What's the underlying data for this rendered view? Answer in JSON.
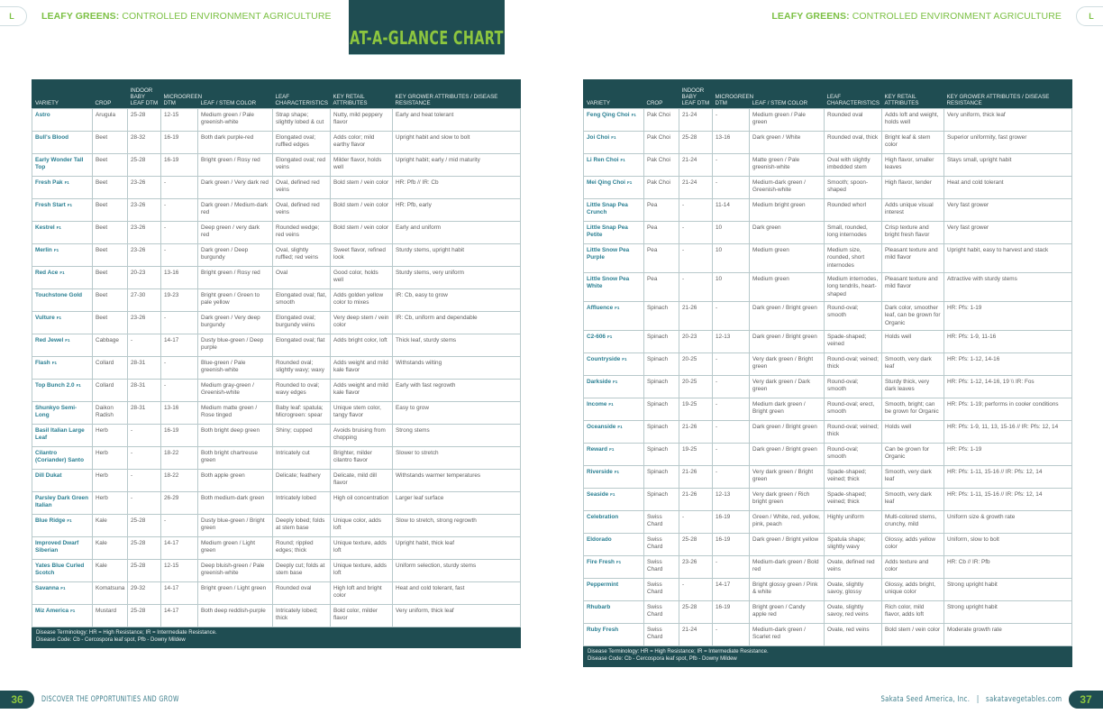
{
  "header": {
    "section_tab": "L",
    "running_bold": "LEAFY GREENS:",
    "running_rest": " CONTROLLED ENVIRONMENT AGRICULTURE",
    "title": "AT-A-GLANCE CHART"
  },
  "columns": [
    "VARIETY",
    "CROP",
    "INDOOR BABY LEAF DTM",
    "MICROGREEN DTM",
    "LEAF / STEM COLOR",
    "LEAF CHARACTERISTICS",
    "KEY RETAIL ATTRIBUTES",
    "KEY GROWER ATTRIBUTES / DISEASE RESISTANCE"
  ],
  "hybrid_label": "F1",
  "left_rows": [
    [
      "Astro",
      false,
      "Arugula",
      "25-28",
      "12-15",
      "Medium green / Pale greenish-white",
      "Strap shape; slightly lobed & cut",
      "Nutty, mild peppery flavor",
      "Early and heat tolerant"
    ],
    [
      "Bull's Blood",
      false,
      "Beet",
      "28-32",
      "16-19",
      "Both dark purple-red",
      "Elongated oval; ruffled edges",
      "Adds color; mild earthy flavor",
      "Upright habit and slow to bolt"
    ],
    [
      "Early Wonder Tall Top",
      false,
      "Beet",
      "25-28",
      "16-19",
      "Bright green / Rosy red",
      "Elongated oval; red veins",
      "Milder flavor, holds well",
      "Upright habit; early / mid maturity"
    ],
    [
      "Fresh Pak",
      true,
      "Beet",
      "23-26",
      "-",
      "Dark green / Very dark red",
      "Oval, defined red veins",
      "Bold stem / vein color",
      "HR: Pfb // IR: Cb"
    ],
    [
      "Fresh Start",
      true,
      "Beet",
      "23-26",
      "-",
      "Dark green / Medium-dark red",
      "Oval, defined red veins",
      "Bold stem / vein color",
      "HR: Pfb, early"
    ],
    [
      "Kestrel",
      true,
      "Beet",
      "23-26",
      "-",
      "Deep green / very dark red",
      "Rounded wedge; red veins",
      "Bold stem / vein color",
      "Early and uniform"
    ],
    [
      "Merlin",
      true,
      "Beet",
      "23-26",
      "-",
      "Dark green / Deep burgundy",
      "Oval, slightly ruffled; red veins",
      "Sweet flavor, refined look",
      "Sturdy stems, upright habit"
    ],
    [
      "Red Ace",
      true,
      "Beet",
      "20-23",
      "13-16",
      "Bright green / Rosy red",
      "Oval",
      "Good color, holds well",
      "Sturdy stems, very uniform"
    ],
    [
      "Touchstone Gold",
      false,
      "Beet",
      "27-30",
      "19-23",
      "Bright green / Green to pale yellow",
      "Elongated oval; flat, smooth",
      "Adds golden yellow color to mixes",
      "IR: Cb, easy to grow"
    ],
    [
      "Vulture",
      true,
      "Beet",
      "23-26",
      "-",
      "Dark green / Very deep burgundy",
      "Elongated oval; burgundy veins",
      "Very deep stem / vein color",
      "IR: Cb, uniform and dependable"
    ],
    [
      "Red Jewel",
      true,
      "Cabbage",
      "-",
      "14-17",
      "Dusty blue-green / Deep purple",
      "Elongated oval; flat",
      "Adds bright color, loft",
      "Thick leaf, sturdy stems"
    ],
    [
      "Flash",
      true,
      "Collard",
      "28-31",
      "-",
      "Blue-green / Pale greenish-white",
      "Rounded oval; slightly wavy; waxy",
      "Adds weight and mild kale flavor",
      "Withstands wilting"
    ],
    [
      "Top Bunch 2.0",
      true,
      "Collard",
      "28-31",
      "-",
      "Medium gray-green / Greenish-white",
      "Rounded to oval; wavy edges",
      "Adds weight and mild kale flavor",
      "Early with fast regrowth"
    ],
    [
      "Shunkyo Semi-Long",
      false,
      "Daikon Radish",
      "28-31",
      "13-16",
      "Medium matte green / Rose tinged",
      "Baby leaf: spatula; Microgreen: spear",
      "Unique stem color, tangy flavor",
      "Easy to grow"
    ],
    [
      "Basil Italian Large Leaf",
      false,
      "Herb",
      "-",
      "16-19",
      "Both bright deep green",
      "Shiny; cupped",
      "Avoids bruising from chopping",
      "Strong stems"
    ],
    [
      "Cilantro (Coriander) Santo",
      false,
      "Herb",
      "-",
      "18-22",
      "Both bright chartreuse green",
      "Intricately cut",
      "Brighter, milder cilantro flavor",
      "Slower to stretch"
    ],
    [
      "Dill Dukat",
      false,
      "Herb",
      "-",
      "18-22",
      "Both apple green",
      "Delicate; feathery",
      "Delicate, mild dill flavor",
      "Withstands warmer temperatures"
    ],
    [
      "Parsley Dark Green Italian",
      false,
      "Herb",
      "-",
      "26-29",
      "Both medium-dark green",
      "Intricately lobed",
      "High oil concentration",
      "Larger leaf surface"
    ],
    [
      "Blue Ridge",
      true,
      "Kale",
      "25-28",
      "-",
      "Dusty blue-green / Bright green",
      "Deeply lobed; folds at stem base",
      "Unique color, adds loft",
      "Slow to stretch, strong regrowth"
    ],
    [
      "Improved Dwarf Siberian",
      false,
      "Kale",
      "25-28",
      "14-17",
      "Medium green / Light green",
      "Round; rippled edges; thick",
      "Unique texture, adds loft",
      "Upright habit, thick leaf"
    ],
    [
      "Yates Blue Curled Scotch",
      false,
      "Kale",
      "25-28",
      "12-15",
      "Deep bluish-green / Pale greenish-white",
      "Deeply cut; folds at stem base",
      "Unique texture, adds loft",
      "Uniform selection, sturdy stems"
    ],
    [
      "Savanna",
      true,
      "Komatsuna",
      "29-32",
      "14-17",
      "Bright green / Light green",
      "Rounded oval",
      "High loft and bright color",
      "Heat and cold tolerant, fast"
    ],
    [
      "Miz America",
      true,
      "Mustard",
      "25-28",
      "14-17",
      "Both deep reddish-purple",
      "Intricately lobed; thick",
      "Bold color, milder flavor",
      "Very uniform, thick leaf"
    ]
  ],
  "right_rows": [
    [
      "Feng Qing Choi",
      true,
      "Pak Choi",
      "21-24",
      "-",
      "Medium green / Pale green",
      "Rounded oval",
      "Adds loft and weight, holds well",
      "Very uniform, thick leaf"
    ],
    [
      "Joi Choi",
      true,
      "Pak Choi",
      "25-28",
      "13-16",
      "Dark green / White",
      "Rounded oval, thick",
      "Bright leaf & stem color",
      "Superior uniformity, fast grower"
    ],
    [
      "Li Ren Choi",
      true,
      "Pak Choi",
      "21-24",
      "-",
      "Matte green / Pale greenish-white",
      "Oval with slightly imbedded stem",
      "High flavor, smaller leaves",
      "Stays small, upright habit"
    ],
    [
      "Mei Qing Choi",
      true,
      "Pak Choi",
      "21-24",
      "-",
      "Medium-dark green / Greenish-white",
      "Smooth; spoon-shaped",
      "High flavor, tender",
      "Heat and cold tolerant"
    ],
    [
      "Little Snap Pea Crunch",
      false,
      "Pea",
      "-",
      "11-14",
      "Medium bright green",
      "Rounded whorl",
      "Adds unique visual interest",
      "Very fast grower"
    ],
    [
      "Little Snap Pea Petite",
      false,
      "Pea",
      "-",
      "10",
      "Dark green",
      "Small, rounded, long internodes",
      "Crisp texture and bright fresh flavor",
      "Very fast grower"
    ],
    [
      "Little Snow Pea Purple",
      false,
      "Pea",
      "-",
      "10",
      "Medium green",
      "Medium size, rounded, short internodes",
      "Pleasant texture and mild flavor",
      "Upright habit, easy to harvest and stack"
    ],
    [
      "Little Snow Pea White",
      false,
      "Pea",
      "-",
      "10",
      "Medium green",
      "Medium internodes, long tendrils, heart-shaped",
      "Pleasant texture and mild flavor",
      "Attractive with sturdy stems"
    ],
    [
      "Affluence",
      true,
      "Spinach",
      "21-26",
      "-",
      "Dark green / Bright green",
      "Round-oval; smooth",
      "Dark color, smoother leaf, can be grown for Organic",
      "HR: Pfs: 1-19"
    ],
    [
      "C2-606",
      true,
      "Spinach",
      "20-23",
      "12-13",
      "Dark green / Bright green",
      "Spade-shaped; veined",
      "Holds well",
      "HR: Pfs: 1-9, 11-16"
    ],
    [
      "Countryside",
      true,
      "Spinach",
      "20-25",
      "-",
      "Very dark green / Bright green",
      "Round-oval; veined; thick",
      "Smooth, very dark leaf",
      "HR: Pfs: 1-12, 14-16"
    ],
    [
      "Darkside",
      true,
      "Spinach",
      "20-25",
      "-",
      "Very dark green / Dark green",
      "Round-oval; smooth",
      "Sturdy thick, very dark leaves",
      "HR: Pfs: 1-12, 14-16, 19 \\\\ IR: Fos"
    ],
    [
      "Income",
      true,
      "Spinach",
      "19-25",
      "-",
      "Medium dark green / Bright green",
      "Round-oval; erect, smooth",
      "Smooth, bright; can be grown for Organic",
      "HR: Pfs: 1-19; performs in cooler conditions"
    ],
    [
      "Oceanside",
      true,
      "Spinach",
      "21-26",
      "-",
      "Dark green / Bright green",
      "Round-oval; veined; thick",
      "Holds well",
      "HR: Pfs: 1-9, 11, 13, 15-16 // IR: Pfs: 12, 14"
    ],
    [
      "Reward",
      true,
      "Spinach",
      "19-25",
      "-",
      "Dark green / Bright green",
      "Round-oval; smooth",
      "Can be grown for Organic",
      "HR: Pfs: 1-19"
    ],
    [
      "Riverside",
      true,
      "Spinach",
      "21-26",
      "-",
      "Very dark green / Bright green",
      "Spade-shaped; veined; thick",
      "Smooth, very dark leaf",
      "HR: Pfs: 1-11, 15-16 // IR: Pfs: 12, 14"
    ],
    [
      "Seaside",
      true,
      "Spinach",
      "21-26",
      "12-13",
      "Very dark green / Rich bright green",
      "Spade-shaped; veined; thick",
      "Smooth, very dark leaf",
      "HR: Pfs: 1-11, 15-16 // IR: Pfs: 12, 14"
    ],
    [
      "Celebration",
      false,
      "Swiss Chard",
      "-",
      "16-19",
      "Green / White, red, yellow, pink, peach",
      "Highly uniform",
      "Multi-colored stems, crunchy, mild",
      "Uniform size & growth rate"
    ],
    [
      "Eldorado",
      false,
      "Swiss Chard",
      "25-28",
      "16-19",
      "Dark green / Bright yellow",
      "Spatula shape; slightly wavy",
      "Glossy, adds yellow color",
      "Uniform, slow to bolt"
    ],
    [
      "Fire Fresh",
      true,
      "Swiss Chard",
      "23-26",
      "-",
      "Medium-dark green / Bold red",
      "Ovate, defined red veins",
      "Adds texture and color",
      "HR: Cb // IR: Pfb"
    ],
    [
      "Peppermint",
      false,
      "Swiss Chard",
      "-",
      "14-17",
      "Bright glossy green / Pink & white",
      "Ovate, slightly savoy, glossy",
      "Glossy, adds bright, unique color",
      "Strong upright habit"
    ],
    [
      "Rhubarb",
      false,
      "Swiss Chard",
      "25-28",
      "16-19",
      "Bright green / Candy apple red",
      "Ovate, slightly savoy, red veins",
      "Rich color, mild flavor, adds loft",
      "Strong upright habit"
    ],
    [
      "Ruby Fresh",
      false,
      "Swiss Chard",
      "21-24",
      "-",
      "Medium-dark green / Scarlet red",
      "Ovate, red veins",
      "Bold stem / vein color",
      "Moderate growth rate"
    ]
  ],
  "table_note": {
    "line1": "Disease Terminology: HR = High Resistance; IR = Intermediate Resistance.",
    "line2": "Disease Code: Cb - Cercospora leaf spot, Pfb - Downy Mildew"
  },
  "footer": {
    "left_page": "36",
    "left_tagline": "DISCOVER THE OPPORTUNITIES AND GROW",
    "right_text": "Sakata Seed America, Inc.   |   sakatavegetables.com",
    "right_page": "37"
  },
  "colors": {
    "dark_teal": "#1f4d52",
    "accent_green": "#8dc63f",
    "variety_teal": "#2a7f92"
  }
}
